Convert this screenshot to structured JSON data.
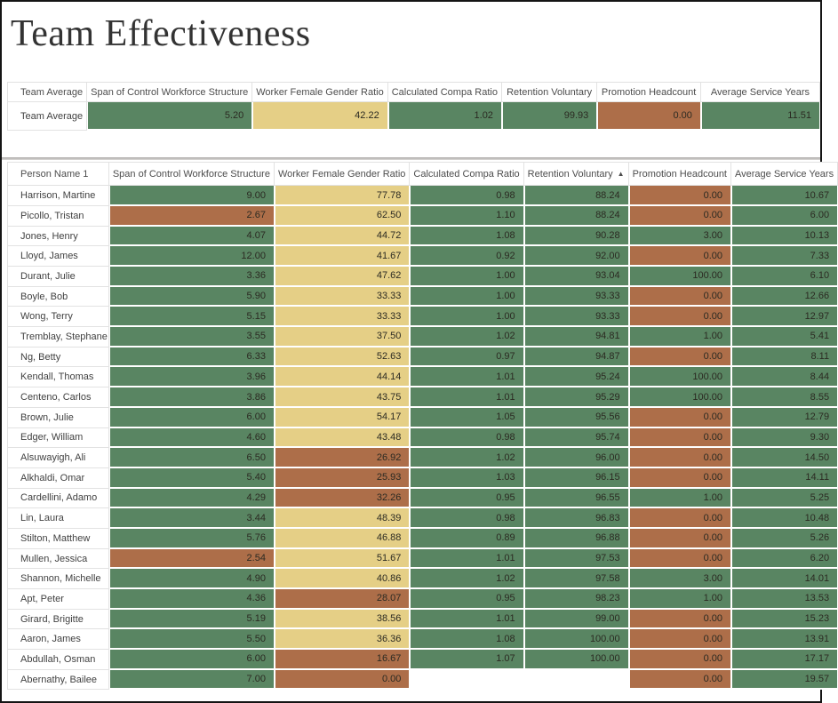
{
  "title": "Team Effectiveness",
  "colors": {
    "green": "#598562",
    "tan": "#e5cf86",
    "brown": "#ad6e49",
    "blank": "#ffffff",
    "frame_border": "#141414",
    "grid_line": "#e2e2e2",
    "header_text": "#4d4d4d",
    "value_text": "#2b2a22"
  },
  "chart_data": {
    "type": "heatmap",
    "title": "Team Effectiveness",
    "columns": [
      "Span of Control Workforce Structure",
      "Worker Female Gender Ratio",
      "Calculated Compa Ratio",
      "Retention Voluntary",
      "Promotion Headcount",
      "Average Service Years"
    ],
    "summary": {
      "row_label_header": "Team Average",
      "rows": [
        {
          "label": "Team Average",
          "cells": [
            [
              "5.20",
              "green"
            ],
            [
              "42.22",
              "tan"
            ],
            [
              "1.02",
              "green"
            ],
            [
              "99.93",
              "green"
            ],
            [
              "0.00",
              "brown"
            ],
            [
              "11.51",
              "green"
            ]
          ]
        }
      ]
    },
    "people": {
      "row_label_header": "Person Name 1",
      "sort_column_index": 3,
      "sort_direction": "ascending",
      "sort_icon": "▲",
      "rows": [
        {
          "label": "Harrison, Martine",
          "cells": [
            [
              "9.00",
              "green"
            ],
            [
              "77.78",
              "tan"
            ],
            [
              "0.98",
              "green"
            ],
            [
              "88.24",
              "green"
            ],
            [
              "0.00",
              "brown"
            ],
            [
              "10.67",
              "green"
            ]
          ]
        },
        {
          "label": "Picollo, Tristan",
          "cells": [
            [
              "2.67",
              "brown"
            ],
            [
              "62.50",
              "tan"
            ],
            [
              "1.10",
              "green"
            ],
            [
              "88.24",
              "green"
            ],
            [
              "0.00",
              "brown"
            ],
            [
              "6.00",
              "green"
            ]
          ]
        },
        {
          "label": "Jones, Henry",
          "cells": [
            [
              "4.07",
              "green"
            ],
            [
              "44.72",
              "tan"
            ],
            [
              "1.08",
              "green"
            ],
            [
              "90.28",
              "green"
            ],
            [
              "3.00",
              "green"
            ],
            [
              "10.13",
              "green"
            ]
          ]
        },
        {
          "label": "Lloyd, James",
          "cells": [
            [
              "12.00",
              "green"
            ],
            [
              "41.67",
              "tan"
            ],
            [
              "0.92",
              "green"
            ],
            [
              "92.00",
              "green"
            ],
            [
              "0.00",
              "brown"
            ],
            [
              "7.33",
              "green"
            ]
          ]
        },
        {
          "label": "Durant, Julie",
          "cells": [
            [
              "3.36",
              "green"
            ],
            [
              "47.62",
              "tan"
            ],
            [
              "1.00",
              "green"
            ],
            [
              "93.04",
              "green"
            ],
            [
              "100.00",
              "green"
            ],
            [
              "6.10",
              "green"
            ]
          ]
        },
        {
          "label": "Boyle, Bob",
          "cells": [
            [
              "5.90",
              "green"
            ],
            [
              "33.33",
              "tan"
            ],
            [
              "1.00",
              "green"
            ],
            [
              "93.33",
              "green"
            ],
            [
              "0.00",
              "brown"
            ],
            [
              "12.66",
              "green"
            ]
          ]
        },
        {
          "label": "Wong, Terry",
          "cells": [
            [
              "5.15",
              "green"
            ],
            [
              "33.33",
              "tan"
            ],
            [
              "1.00",
              "green"
            ],
            [
              "93.33",
              "green"
            ],
            [
              "0.00",
              "brown"
            ],
            [
              "12.97",
              "green"
            ]
          ]
        },
        {
          "label": "Tremblay, Stephane",
          "cells": [
            [
              "3.55",
              "green"
            ],
            [
              "37.50",
              "tan"
            ],
            [
              "1.02",
              "green"
            ],
            [
              "94.81",
              "green"
            ],
            [
              "1.00",
              "green"
            ],
            [
              "5.41",
              "green"
            ]
          ]
        },
        {
          "label": "Ng, Betty",
          "cells": [
            [
              "6.33",
              "green"
            ],
            [
              "52.63",
              "tan"
            ],
            [
              "0.97",
              "green"
            ],
            [
              "94.87",
              "green"
            ],
            [
              "0.00",
              "brown"
            ],
            [
              "8.11",
              "green"
            ]
          ]
        },
        {
          "label": "Kendall, Thomas",
          "cells": [
            [
              "3.96",
              "green"
            ],
            [
              "44.14",
              "tan"
            ],
            [
              "1.01",
              "green"
            ],
            [
              "95.24",
              "green"
            ],
            [
              "100.00",
              "green"
            ],
            [
              "8.44",
              "green"
            ]
          ]
        },
        {
          "label": "Centeno, Carlos",
          "cells": [
            [
              "3.86",
              "green"
            ],
            [
              "43.75",
              "tan"
            ],
            [
              "1.01",
              "green"
            ],
            [
              "95.29",
              "green"
            ],
            [
              "100.00",
              "green"
            ],
            [
              "8.55",
              "green"
            ]
          ]
        },
        {
          "label": "Brown, Julie",
          "cells": [
            [
              "6.00",
              "green"
            ],
            [
              "54.17",
              "tan"
            ],
            [
              "1.05",
              "green"
            ],
            [
              "95.56",
              "green"
            ],
            [
              "0.00",
              "brown"
            ],
            [
              "12.79",
              "green"
            ]
          ]
        },
        {
          "label": "Edger, William",
          "cells": [
            [
              "4.60",
              "green"
            ],
            [
              "43.48",
              "tan"
            ],
            [
              "0.98",
              "green"
            ],
            [
              "95.74",
              "green"
            ],
            [
              "0.00",
              "brown"
            ],
            [
              "9.30",
              "green"
            ]
          ]
        },
        {
          "label": "Alsuwayigh, Ali",
          "cells": [
            [
              "6.50",
              "green"
            ],
            [
              "26.92",
              "brown"
            ],
            [
              "1.02",
              "green"
            ],
            [
              "96.00",
              "green"
            ],
            [
              "0.00",
              "brown"
            ],
            [
              "14.50",
              "green"
            ]
          ]
        },
        {
          "label": "Alkhaldi, Omar",
          "cells": [
            [
              "5.40",
              "green"
            ],
            [
              "25.93",
              "brown"
            ],
            [
              "1.03",
              "green"
            ],
            [
              "96.15",
              "green"
            ],
            [
              "0.00",
              "brown"
            ],
            [
              "14.11",
              "green"
            ]
          ]
        },
        {
          "label": "Cardellini, Adamo",
          "cells": [
            [
              "4.29",
              "green"
            ],
            [
              "32.26",
              "brown"
            ],
            [
              "0.95",
              "green"
            ],
            [
              "96.55",
              "green"
            ],
            [
              "1.00",
              "green"
            ],
            [
              "5.25",
              "green"
            ]
          ]
        },
        {
          "label": "Lin, Laura",
          "cells": [
            [
              "3.44",
              "green"
            ],
            [
              "48.39",
              "tan"
            ],
            [
              "0.98",
              "green"
            ],
            [
              "96.83",
              "green"
            ],
            [
              "0.00",
              "brown"
            ],
            [
              "10.48",
              "green"
            ]
          ]
        },
        {
          "label": "Stilton, Matthew",
          "cells": [
            [
              "5.76",
              "green"
            ],
            [
              "46.88",
              "tan"
            ],
            [
              "0.89",
              "green"
            ],
            [
              "96.88",
              "green"
            ],
            [
              "0.00",
              "brown"
            ],
            [
              "5.26",
              "green"
            ]
          ]
        },
        {
          "label": "Mullen, Jessica",
          "cells": [
            [
              "2.54",
              "brown"
            ],
            [
              "51.67",
              "tan"
            ],
            [
              "1.01",
              "green"
            ],
            [
              "97.53",
              "green"
            ],
            [
              "0.00",
              "brown"
            ],
            [
              "6.20",
              "green"
            ]
          ]
        },
        {
          "label": "Shannon, Michelle",
          "cells": [
            [
              "4.90",
              "green"
            ],
            [
              "40.86",
              "tan"
            ],
            [
              "1.02",
              "green"
            ],
            [
              "97.58",
              "green"
            ],
            [
              "3.00",
              "green"
            ],
            [
              "14.01",
              "green"
            ]
          ]
        },
        {
          "label": "Apt, Peter",
          "cells": [
            [
              "4.36",
              "green"
            ],
            [
              "28.07",
              "brown"
            ],
            [
              "0.95",
              "green"
            ],
            [
              "98.23",
              "green"
            ],
            [
              "1.00",
              "green"
            ],
            [
              "13.53",
              "green"
            ]
          ]
        },
        {
          "label": "Girard, Brigitte",
          "cells": [
            [
              "5.19",
              "green"
            ],
            [
              "38.56",
              "tan"
            ],
            [
              "1.01",
              "green"
            ],
            [
              "99.00",
              "green"
            ],
            [
              "0.00",
              "brown"
            ],
            [
              "15.23",
              "green"
            ]
          ]
        },
        {
          "label": "Aaron, James",
          "cells": [
            [
              "5.50",
              "green"
            ],
            [
              "36.36",
              "tan"
            ],
            [
              "1.08",
              "green"
            ],
            [
              "100.00",
              "green"
            ],
            [
              "0.00",
              "brown"
            ],
            [
              "13.91",
              "green"
            ]
          ]
        },
        {
          "label": "Abdullah, Osman",
          "cells": [
            [
              "6.00",
              "green"
            ],
            [
              "16.67",
              "brown"
            ],
            [
              "1.07",
              "green"
            ],
            [
              "100.00",
              "green"
            ],
            [
              "0.00",
              "brown"
            ],
            [
              "17.17",
              "green"
            ]
          ]
        },
        {
          "label": "Abernathy, Bailee",
          "cells": [
            [
              "7.00",
              "green"
            ],
            [
              "0.00",
              "brown"
            ],
            [
              "",
              "blank"
            ],
            [
              "",
              "blank"
            ],
            [
              "0.00",
              "brown"
            ],
            [
              "19.57",
              "green"
            ]
          ]
        }
      ]
    }
  }
}
